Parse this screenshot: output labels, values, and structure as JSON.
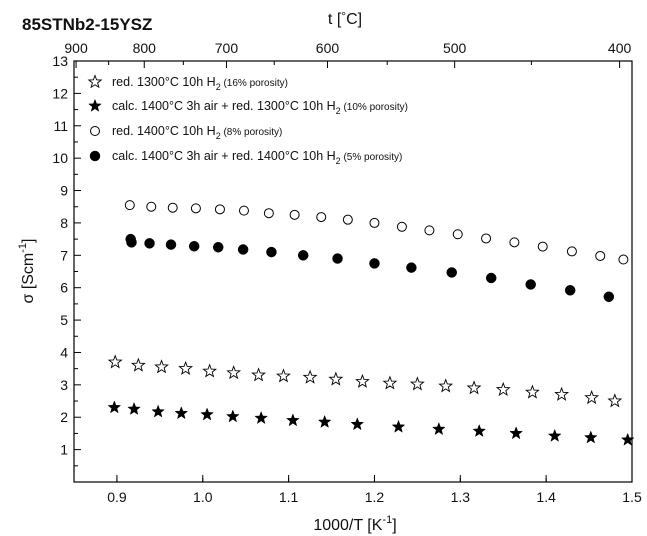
{
  "chart_data": {
    "type": "scatter",
    "title": "85STNb2-15YSZ",
    "xlabel": {
      "main": "1000/T [K",
      "sup": "-1",
      "end": "]"
    },
    "ylabel": {
      "main": "σ [Scm",
      "sup": "-1",
      "end": "]"
    },
    "top_axis_label": {
      "main": "t [",
      "deg": "°",
      "end": "C]"
    },
    "xlim": [
      0.85,
      1.5
    ],
    "ylim": [
      0,
      13
    ],
    "x_ticks": [
      0.9,
      1.0,
      1.1,
      1.2,
      1.3,
      1.4,
      1.5
    ],
    "x_tick_labels": [
      "0.9",
      "1.0",
      "1.1",
      "1.2",
      "1.3",
      "1.4",
      "1.5"
    ],
    "y_ticks": [
      1,
      2,
      3,
      4,
      5,
      6,
      7,
      8,
      9,
      10,
      11,
      12,
      13
    ],
    "y_tick_labels": [
      "1",
      "2",
      "3",
      "4",
      "5",
      "6",
      "7",
      "8",
      "9",
      "10",
      "11",
      "12",
      "13"
    ],
    "top_ticks_celsius": [
      900,
      800,
      700,
      600,
      500,
      400
    ],
    "top_tick_labels": [
      "900",
      "800",
      "700",
      "600",
      "500",
      "400"
    ],
    "grid": false,
    "legend_position": "top-left",
    "series": [
      {
        "name": "red. 1300°C 10h H2 (16% porosity)",
        "legend": {
          "main": "red. 1300°C 10h H",
          "sub": "2",
          "small": " (16% porosity)"
        },
        "marker": "star-open",
        "x": [
          0.898,
          0.925,
          0.952,
          0.98,
          1.008,
          1.036,
          1.065,
          1.094,
          1.125,
          1.155,
          1.186,
          1.218,
          1.25,
          1.283,
          1.316,
          1.35,
          1.384,
          1.418,
          1.453,
          1.48
        ],
        "y": [
          3.7,
          3.6,
          3.55,
          3.5,
          3.42,
          3.37,
          3.3,
          3.27,
          3.23,
          3.17,
          3.1,
          3.05,
          3.02,
          2.96,
          2.9,
          2.85,
          2.77,
          2.7,
          2.6,
          2.5
        ]
      },
      {
        "name": "calc. 1400°C 3h air + red. 1300°C 10h H2 (10% porosity)",
        "legend": {
          "main": "calc. 1400°C 3h air + red. 1300°C 10h H",
          "sub": "2",
          "small": " (10% porosity)"
        },
        "marker": "star-filled",
        "x": [
          0.897,
          0.92,
          0.948,
          0.975,
          1.005,
          1.035,
          1.068,
          1.105,
          1.142,
          1.18,
          1.228,
          1.275,
          1.322,
          1.365,
          1.41,
          1.452,
          1.495
        ],
        "y": [
          2.3,
          2.25,
          2.17,
          2.12,
          2.08,
          2.02,
          1.97,
          1.9,
          1.85,
          1.78,
          1.7,
          1.63,
          1.57,
          1.5,
          1.42,
          1.37,
          1.3
        ]
      },
      {
        "name": "red. 1400°C 10h H2 (8% porosity)",
        "legend": {
          "main": "red. 1400°C 10h H",
          "sub": "2",
          "small": " (8% porosity)"
        },
        "marker": "circle-open",
        "x": [
          0.915,
          0.94,
          0.965,
          0.992,
          1.02,
          1.048,
          1.077,
          1.107,
          1.138,
          1.169,
          1.2,
          1.232,
          1.264,
          1.297,
          1.33,
          1.363,
          1.396,
          1.43,
          1.463,
          1.49
        ],
        "y": [
          8.55,
          8.5,
          8.47,
          8.45,
          8.42,
          8.38,
          8.3,
          8.25,
          8.18,
          8.1,
          8.0,
          7.88,
          7.77,
          7.65,
          7.52,
          7.4,
          7.27,
          7.12,
          6.98,
          6.87
        ]
      },
      {
        "name": "calc. 1400°C 3h air + red. 1400°C 10h H2 (5% porosity)",
        "legend": {
          "main": "calc. 1400°C 3h air + red. 1400°C 10h H",
          "sub": "2",
          "small": " (5% porosity)"
        },
        "marker": "circle-filled",
        "x": [
          0.916,
          0.917,
          0.938,
          0.963,
          0.99,
          1.018,
          1.047,
          1.08,
          1.117,
          1.157,
          1.2,
          1.243,
          1.29,
          1.336,
          1.382,
          1.428,
          1.473
        ],
        "y": [
          7.5,
          7.4,
          7.37,
          7.33,
          7.28,
          7.25,
          7.18,
          7.1,
          7.0,
          6.9,
          6.75,
          6.62,
          6.47,
          6.3,
          6.1,
          5.92,
          5.72
        ]
      }
    ]
  }
}
